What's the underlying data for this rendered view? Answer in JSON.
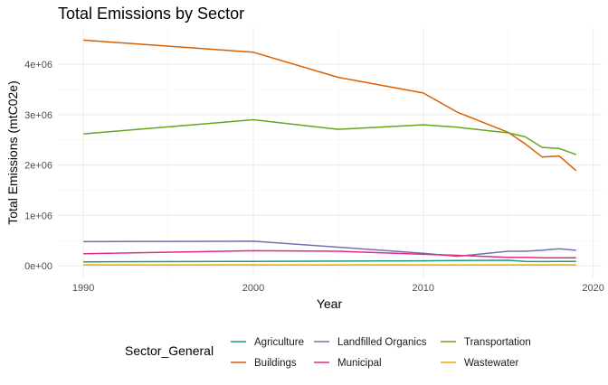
{
  "chart_data": {
    "type": "line",
    "title": "Total Emissions by Sector",
    "xlabel": "Year",
    "ylabel": "Total Emissions (mtC02e)",
    "xlim": [
      1988.5,
      2020.5
    ],
    "ylim": [
      -230000,
      4720000
    ],
    "x_ticks": [
      1990,
      2000,
      2010,
      2020
    ],
    "x_tick_labels": [
      "1990",
      "2000",
      "2010",
      "2020"
    ],
    "y_ticks": [
      0,
      1000000,
      2000000,
      3000000,
      4000000
    ],
    "y_tick_labels": [
      "0e+00",
      "1e+06",
      "2e+06",
      "3e+06",
      "4e+06"
    ],
    "grid": true,
    "legend": {
      "title": "Sector_General",
      "position": "bottom",
      "columns": 3
    },
    "series": [
      {
        "name": "Agriculture",
        "color": "#1B9E77",
        "x": [
          1990,
          2000,
          2005,
          2010,
          2012,
          2015,
          2016,
          2017,
          2018,
          2019
        ],
        "y": [
          80000,
          90000,
          95000,
          100000,
          105000,
          110000,
          90000,
          85000,
          90000,
          90000
        ]
      },
      {
        "name": "Buildings",
        "color": "#D95F02",
        "x": [
          1990,
          2000,
          2005,
          2010,
          2012,
          2015,
          2016,
          2017,
          2018,
          2019
        ],
        "y": [
          4480000,
          4240000,
          3740000,
          3430000,
          3050000,
          2650000,
          2420000,
          2160000,
          2180000,
          1890000
        ]
      },
      {
        "name": "Landfilled Organics",
        "color": "#7570B3",
        "x": [
          1990,
          2000,
          2005,
          2010,
          2012,
          2015,
          2016,
          2017,
          2018,
          2019
        ],
        "y": [
          480000,
          490000,
          370000,
          250000,
          190000,
          290000,
          290000,
          310000,
          340000,
          310000
        ]
      },
      {
        "name": "Municipal",
        "color": "#E7298A",
        "x": [
          1990,
          2000,
          2005,
          2010,
          2012,
          2015,
          2016,
          2017,
          2018,
          2019
        ],
        "y": [
          240000,
          300000,
          290000,
          230000,
          210000,
          170000,
          170000,
          160000,
          160000,
          160000
        ]
      },
      {
        "name": "Transportation",
        "color": "#66A61E",
        "x": [
          1990,
          2000,
          2005,
          2010,
          2012,
          2015,
          2016,
          2017,
          2018,
          2019
        ],
        "y": [
          2620000,
          2900000,
          2710000,
          2800000,
          2750000,
          2640000,
          2560000,
          2350000,
          2330000,
          2210000
        ]
      },
      {
        "name": "Wastewater",
        "color": "#E6AB02",
        "x": [
          1990,
          2000,
          2005,
          2010,
          2012,
          2015,
          2016,
          2017,
          2018,
          2019
        ],
        "y": [
          20000,
          20000,
          20000,
          20000,
          20000,
          20000,
          20000,
          20000,
          20000,
          20000
        ]
      }
    ]
  }
}
